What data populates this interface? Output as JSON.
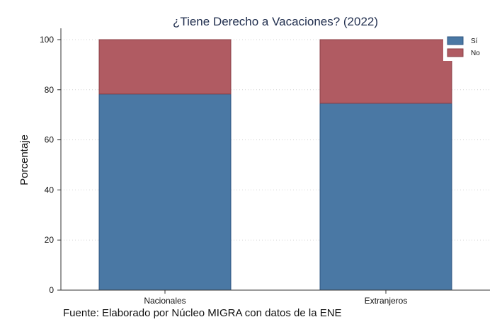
{
  "chart_data": {
    "type": "bar",
    "stacked": true,
    "title": "¿Tiene Derecho a Vacaciones? (2022)",
    "xlabel": "",
    "ylabel": "Porcentaje",
    "categories": [
      "Nacionales",
      "Extranjeros"
    ],
    "series": [
      {
        "name": "Sí",
        "values": [
          78.3,
          74.6
        ],
        "color": "#4a78a4"
      },
      {
        "name": "No",
        "values": [
          21.7,
          25.4
        ],
        "color": "#b05b62"
      }
    ],
    "ylim": [
      0,
      100
    ],
    "yticks": [
      0,
      20,
      40,
      60,
      80,
      100
    ],
    "grid": true,
    "legend_position": "top-right",
    "source_note": "Fuente: Elaborado por Núcleo MIGRA con datos de la ENE"
  }
}
